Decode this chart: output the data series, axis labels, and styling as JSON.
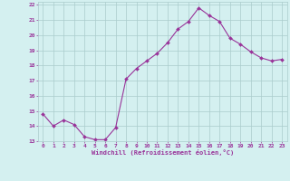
{
  "x": [
    0,
    1,
    2,
    3,
    4,
    5,
    6,
    7,
    8,
    9,
    10,
    11,
    12,
    13,
    14,
    15,
    16,
    17,
    18,
    19,
    20,
    21,
    22,
    23
  ],
  "y": [
    14.8,
    14.0,
    14.4,
    14.1,
    13.3,
    13.1,
    13.1,
    13.9,
    17.1,
    17.8,
    18.3,
    18.8,
    19.5,
    20.4,
    20.9,
    21.8,
    21.3,
    20.9,
    19.8,
    19.4,
    18.9,
    18.5,
    18.3,
    18.4
  ],
  "xlabel": "Windchill (Refroidissement éolien,°C)",
  "ylim": [
    13,
    22
  ],
  "xlim": [
    -0.5,
    23.5
  ],
  "yticks": [
    13,
    14,
    15,
    16,
    17,
    18,
    19,
    20,
    21,
    22
  ],
  "xticks": [
    0,
    1,
    2,
    3,
    4,
    5,
    6,
    7,
    8,
    9,
    10,
    11,
    12,
    13,
    14,
    15,
    16,
    17,
    18,
    19,
    20,
    21,
    22,
    23
  ],
  "line_color": "#993399",
  "marker_color": "#993399",
  "bg_color": "#d4f0f0",
  "grid_color": "#aacccc",
  "tick_label_color": "#993399",
  "xlabel_color": "#993399"
}
